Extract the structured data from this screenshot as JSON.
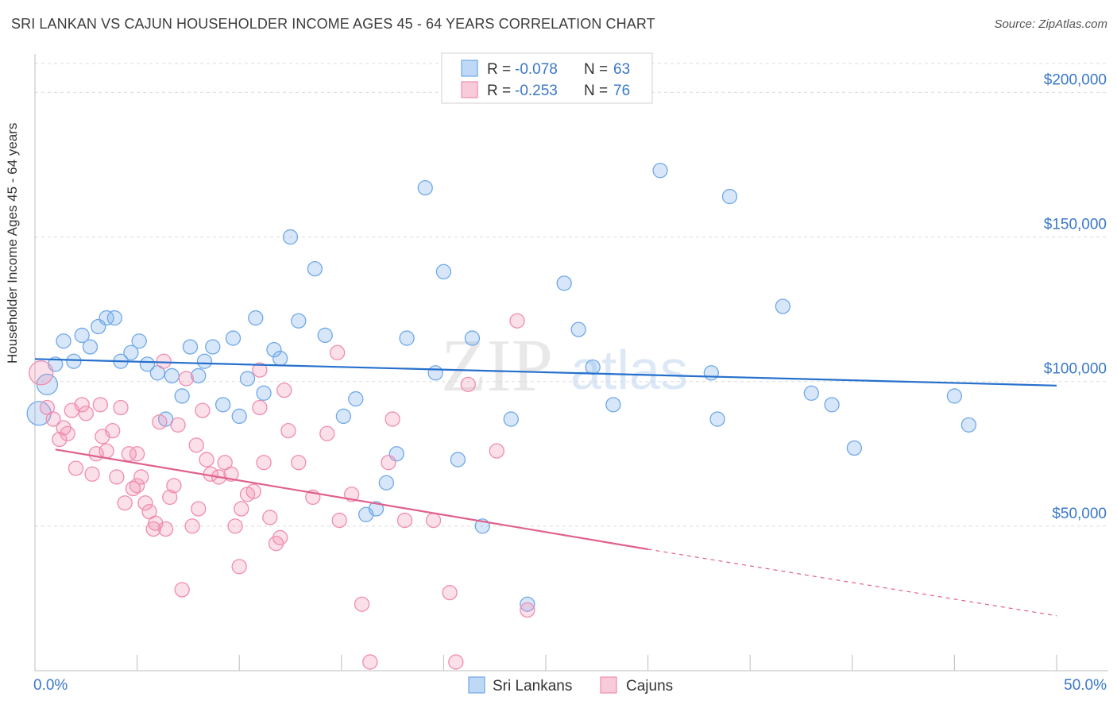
{
  "header": {
    "title": "SRI LANKAN VS CAJUN HOUSEHOLDER INCOME AGES 45 - 64 YEARS CORRELATION CHART",
    "source": "Source: ZipAtlas.com"
  },
  "colors": {
    "sri_lankans": "#6fa8e8",
    "sri_lankans_line": "#2670cc",
    "cajuns": "#f08cb0",
    "cajuns_line": "#e0608c",
    "axis_text": "#3a78c9"
  },
  "legend_top": [
    {
      "r_label": "R = ",
      "r_value": "-0.078",
      "n_label": "N = ",
      "n_value": "63"
    },
    {
      "r_label": "R = ",
      "r_value": "-0.253",
      "n_label": "N = ",
      "n_value": "76"
    }
  ],
  "legend_bottom": [
    "Sri Lankans",
    "Cajuns"
  ],
  "watermark": {
    "zip": "ZIP",
    "atlas": "atlas"
  },
  "chart_data": {
    "type": "scatter",
    "xlabel": "",
    "ylabel": "Householder Income Ages 45 - 64 years",
    "xlim": [
      0,
      50
    ],
    "ylim": [
      0,
      210000
    ],
    "x_tick_labels": [
      "0.0%",
      "50.0%"
    ],
    "y_ticks": [
      50000,
      100000,
      150000,
      200000
    ],
    "y_tick_labels": [
      "$50,000",
      "$100,000",
      "$150,000",
      "$200,000"
    ],
    "grid": true,
    "series": [
      {
        "name": "Sri Lankans",
        "trend": {
          "x": [
            0,
            50
          ],
          "y": [
            107800,
            98600
          ]
        },
        "points": [
          [
            0.2,
            89000
          ],
          [
            0.6,
            99000
          ],
          [
            1.0,
            106000
          ],
          [
            1.4,
            114000
          ],
          [
            1.9,
            107000
          ],
          [
            2.3,
            116000
          ],
          [
            2.7,
            112000
          ],
          [
            3.1,
            119000
          ],
          [
            3.5,
            122000
          ],
          [
            3.9,
            122000
          ],
          [
            4.2,
            107000
          ],
          [
            4.7,
            110000
          ],
          [
            5.1,
            114000
          ],
          [
            5.5,
            106000
          ],
          [
            6.0,
            103000
          ],
          [
            6.4,
            87000
          ],
          [
            6.7,
            102000
          ],
          [
            7.2,
            95000
          ],
          [
            7.6,
            112000
          ],
          [
            8.0,
            102000
          ],
          [
            8.3,
            107000
          ],
          [
            8.7,
            112000
          ],
          [
            9.2,
            92000
          ],
          [
            9.7,
            115000
          ],
          [
            10.0,
            88000
          ],
          [
            10.4,
            101000
          ],
          [
            10.8,
            122000
          ],
          [
            11.2,
            96000
          ],
          [
            11.7,
            111000
          ],
          [
            12.0,
            108000
          ],
          [
            12.5,
            150000
          ],
          [
            12.9,
            121000
          ],
          [
            13.7,
            139000
          ],
          [
            14.2,
            116000
          ],
          [
            15.1,
            88000
          ],
          [
            15.7,
            94000
          ],
          [
            16.2,
            54000
          ],
          [
            16.7,
            56000
          ],
          [
            17.2,
            65000
          ],
          [
            17.7,
            75000
          ],
          [
            18.2,
            115000
          ],
          [
            19.1,
            167000
          ],
          [
            19.6,
            103000
          ],
          [
            20.0,
            138000
          ],
          [
            20.7,
            73000
          ],
          [
            21.4,
            115000
          ],
          [
            21.9,
            50000
          ],
          [
            23.3,
            87000
          ],
          [
            24.1,
            23000
          ],
          [
            25.9,
            134000
          ],
          [
            26.6,
            118000
          ],
          [
            27.3,
            105000
          ],
          [
            28.3,
            92000
          ],
          [
            30.6,
            173000
          ],
          [
            33.1,
            103000
          ],
          [
            33.4,
            87000
          ],
          [
            34.0,
            164000
          ],
          [
            36.6,
            126000
          ],
          [
            38.0,
            96000
          ],
          [
            39.0,
            92000
          ],
          [
            40.1,
            77000
          ],
          [
            45.0,
            95000
          ],
          [
            45.7,
            85000
          ]
        ]
      },
      {
        "name": "Cajuns",
        "trend": {
          "x": [
            1,
            30
          ],
          "y": [
            76500,
            42000
          ]
        },
        "trend_dashed": {
          "x": [
            30,
            50
          ],
          "y": [
            42000,
            19000
          ]
        },
        "points": [
          [
            0.3,
            103000
          ],
          [
            0.6,
            91000
          ],
          [
            0.9,
            87000
          ],
          [
            1.2,
            80000
          ],
          [
            1.4,
            84000
          ],
          [
            1.6,
            82000
          ],
          [
            1.8,
            90000
          ],
          [
            2.0,
            70000
          ],
          [
            2.3,
            92000
          ],
          [
            2.5,
            89000
          ],
          [
            2.8,
            68000
          ],
          [
            3.0,
            75000
          ],
          [
            3.3,
            81000
          ],
          [
            3.5,
            76000
          ],
          [
            3.8,
            83000
          ],
          [
            4.0,
            67000
          ],
          [
            4.2,
            91000
          ],
          [
            4.4,
            58000
          ],
          [
            4.6,
            75000
          ],
          [
            4.8,
            63000
          ],
          [
            5.0,
            64000
          ],
          [
            5.2,
            67000
          ],
          [
            5.4,
            58000
          ],
          [
            5.6,
            55000
          ],
          [
            5.8,
            49000
          ],
          [
            5.9,
            51000
          ],
          [
            6.1,
            86000
          ],
          [
            6.3,
            107000
          ],
          [
            6.4,
            49000
          ],
          [
            6.6,
            60000
          ],
          [
            6.8,
            64000
          ],
          [
            7.0,
            85000
          ],
          [
            7.2,
            28000
          ],
          [
            7.4,
            101000
          ],
          [
            7.7,
            50000
          ],
          [
            7.9,
            78000
          ],
          [
            8.0,
            56000
          ],
          [
            8.2,
            90000
          ],
          [
            8.4,
            73000
          ],
          [
            8.6,
            68000
          ],
          [
            9.0,
            67000
          ],
          [
            9.3,
            72000
          ],
          [
            9.6,
            68000
          ],
          [
            9.8,
            50000
          ],
          [
            10.0,
            36000
          ],
          [
            10.1,
            56000
          ],
          [
            10.4,
            61000
          ],
          [
            10.7,
            62000
          ],
          [
            11.0,
            91000
          ],
          [
            11.0,
            104000
          ],
          [
            11.2,
            72000
          ],
          [
            11.5,
            53000
          ],
          [
            11.8,
            44000
          ],
          [
            12.0,
            46000
          ],
          [
            12.2,
            97000
          ],
          [
            12.4,
            83000
          ],
          [
            12.9,
            72000
          ],
          [
            13.6,
            60000
          ],
          [
            14.3,
            82000
          ],
          [
            14.8,
            110000
          ],
          [
            14.9,
            52000
          ],
          [
            15.5,
            61000
          ],
          [
            16.0,
            23000
          ],
          [
            16.4,
            3000
          ],
          [
            17.3,
            72000
          ],
          [
            17.5,
            87000
          ],
          [
            18.1,
            52000
          ],
          [
            19.5,
            52000
          ],
          [
            20.3,
            27000
          ],
          [
            20.6,
            3000
          ],
          [
            21.2,
            99000
          ],
          [
            22.6,
            76000
          ],
          [
            23.6,
            121000
          ],
          [
            24.1,
            21000
          ],
          [
            3.2,
            92000
          ],
          [
            5.0,
            75000
          ]
        ]
      }
    ]
  }
}
